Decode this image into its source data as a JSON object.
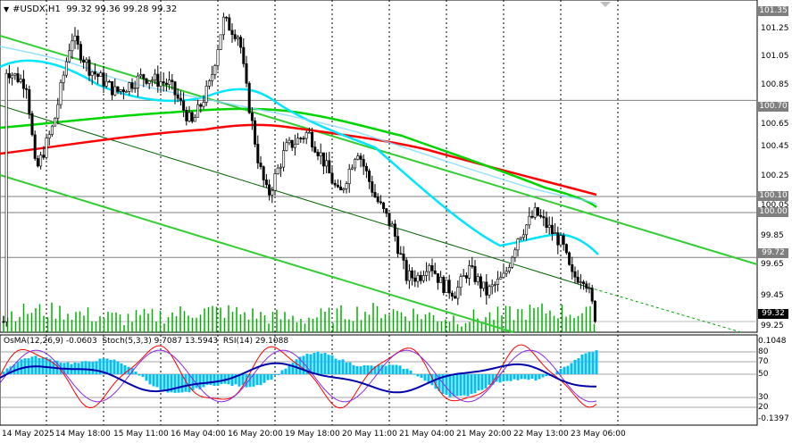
{
  "header": {
    "symbol": "#USDX,H1",
    "ohlc": "99.32 99.36 99.28 99.32"
  },
  "price_axis": {
    "ticks": [
      "101.35",
      "101.25",
      "101.05",
      "100.85",
      "100.70",
      "100.65",
      "100.45",
      "100.25",
      "100.10",
      "100.05",
      "100.00",
      "99.85",
      "99.72",
      "99.65",
      "99.45",
      "99.32",
      "99.25"
    ],
    "current_price": "99.32",
    "levels": {
      "l1": "101.35",
      "l2": "100.70",
      "l3": "100.10",
      "l4": "100.00",
      "l5": "99.72"
    }
  },
  "indicator": {
    "osma_label": "OsMA(12,26,9) -0.0603",
    "stoch_label": "Stoch(5,3,3) 9.7087 13.5943",
    "rsi_label": "RSI(14) 29.1088",
    "ticks": [
      "0.1048",
      "80",
      "70",
      "50",
      "30",
      "20",
      "-0.1397"
    ]
  },
  "time_axis": {
    "labels": [
      "14 May 2025",
      "14 May 18:00",
      "15 May 11:00",
      "16 May 04:00",
      "16 May 20:00",
      "19 May 18:00",
      "20 May 11:00",
      "21 May 04:00",
      "21 May 20:00",
      "22 May 13:00",
      "23 May 06:00"
    ]
  },
  "colors": {
    "background": "#ffffff",
    "grid": "#000000",
    "candles": "#000000",
    "ema_red": "#ff0000",
    "ema_cyan": "#00e5ff",
    "ema_green": "#00d500",
    "channel": "#32cd32",
    "volume": "#00b000",
    "osma": "#00bfff",
    "stoch_main": "#ff0000",
    "stoch_signal": "#8a2be2",
    "rsi": "#0000aa",
    "level_line": "#7f7f7f"
  }
}
